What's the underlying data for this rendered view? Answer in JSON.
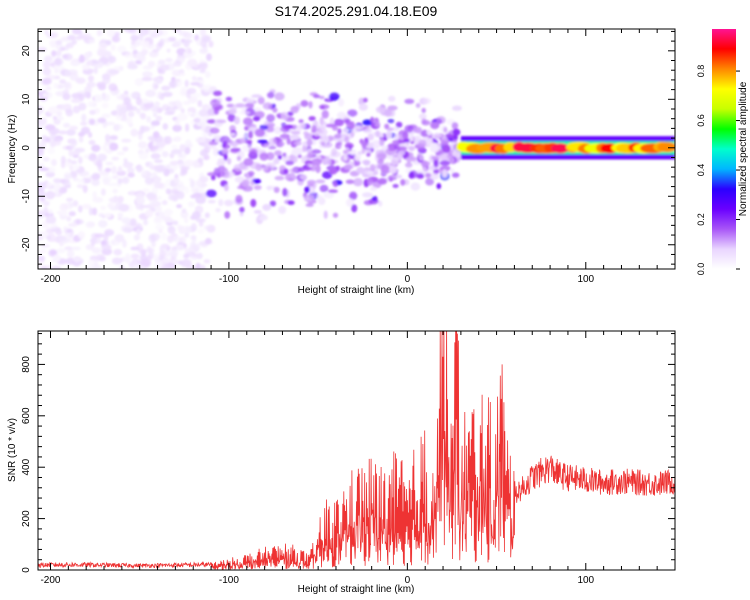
{
  "title": "S174.2025.291.04.18.E09",
  "chart_data": [
    {
      "type": "heatmap",
      "xlabel": "Height of straight line (km)",
      "ylabel": "Frequency (Hz)",
      "xlim": [
        -207,
        150
      ],
      "ylim": [
        -25,
        24.5
      ],
      "xticks": [
        -200,
        -100,
        0,
        100
      ],
      "yticks": [
        20,
        10,
        0,
        -10,
        -20
      ],
      "colorbar": {
        "label": "Normalized spectral amplitude",
        "ticks": [
          0.0,
          0.2,
          0.4,
          0.6,
          0.8
        ],
        "range": [
          0,
          0.97
        ],
        "colors": [
          "#ffffff",
          "#e9d5ff",
          "#a855f7",
          "#6a00ff",
          "#2b00ff",
          "#00b7ff",
          "#00ffcc",
          "#00ff00",
          "#c8ff00",
          "#ffff00",
          "#ff8800",
          "#ff0000",
          "#ff1493"
        ]
      },
      "features": [
        {
          "segment": "diffuse noise",
          "x_range": [
            -207,
            -110
          ],
          "freq_range": [
            -25,
            24.5
          ],
          "amplitude": 0.05
        },
        {
          "segment": "scattered signal",
          "x_range": [
            -110,
            30
          ],
          "freq_range": [
            -15,
            12
          ],
          "amplitude": 0.12
        },
        {
          "segment": "narrow band",
          "x_range": [
            30,
            150
          ],
          "freq_center": 0,
          "freq_halfwidth": 1.5,
          "amplitude": 0.85
        }
      ]
    },
    {
      "type": "line",
      "xlabel": "Height of straight line (km)",
      "ylabel": "SNR (10 * v/v)",
      "xlim": [
        -207,
        150
      ],
      "ylim": [
        0,
        930
      ],
      "xticks": [
        -200,
        -100,
        0,
        100
      ],
      "yticks": [
        0,
        200,
        400,
        600,
        800
      ],
      "color": "#ee3333",
      "series": [
        {
          "name": "SNR",
          "x": [
            -207,
            -190,
            -170,
            -150,
            -130,
            -110,
            -100,
            -90,
            -80,
            -70,
            -60,
            -55,
            -50,
            -45,
            -40,
            -35,
            -30,
            -25,
            -20,
            -15,
            -10,
            -5,
            0,
            5,
            10,
            15,
            20,
            25,
            28,
            30,
            35,
            40,
            45,
            50,
            53,
            55,
            60,
            65,
            70,
            75,
            80,
            85,
            90,
            100,
            110,
            120,
            130,
            140,
            150
          ],
          "y": [
            20,
            22,
            20,
            18,
            20,
            22,
            30,
            45,
            60,
            75,
            60,
            40,
            120,
            200,
            190,
            250,
            270,
            300,
            310,
            280,
            300,
            320,
            260,
            340,
            390,
            380,
            820,
            470,
            900,
            420,
            460,
            500,
            450,
            440,
            790,
            420,
            300,
            320,
            360,
            380,
            400,
            370,
            360,
            350,
            340,
            345,
            340,
            335,
            345
          ]
        }
      ],
      "peaks": [
        {
          "x": 20,
          "y": 830
        },
        {
          "x": 28,
          "y": 920
        },
        {
          "x": 53,
          "y": 800
        }
      ]
    }
  ]
}
